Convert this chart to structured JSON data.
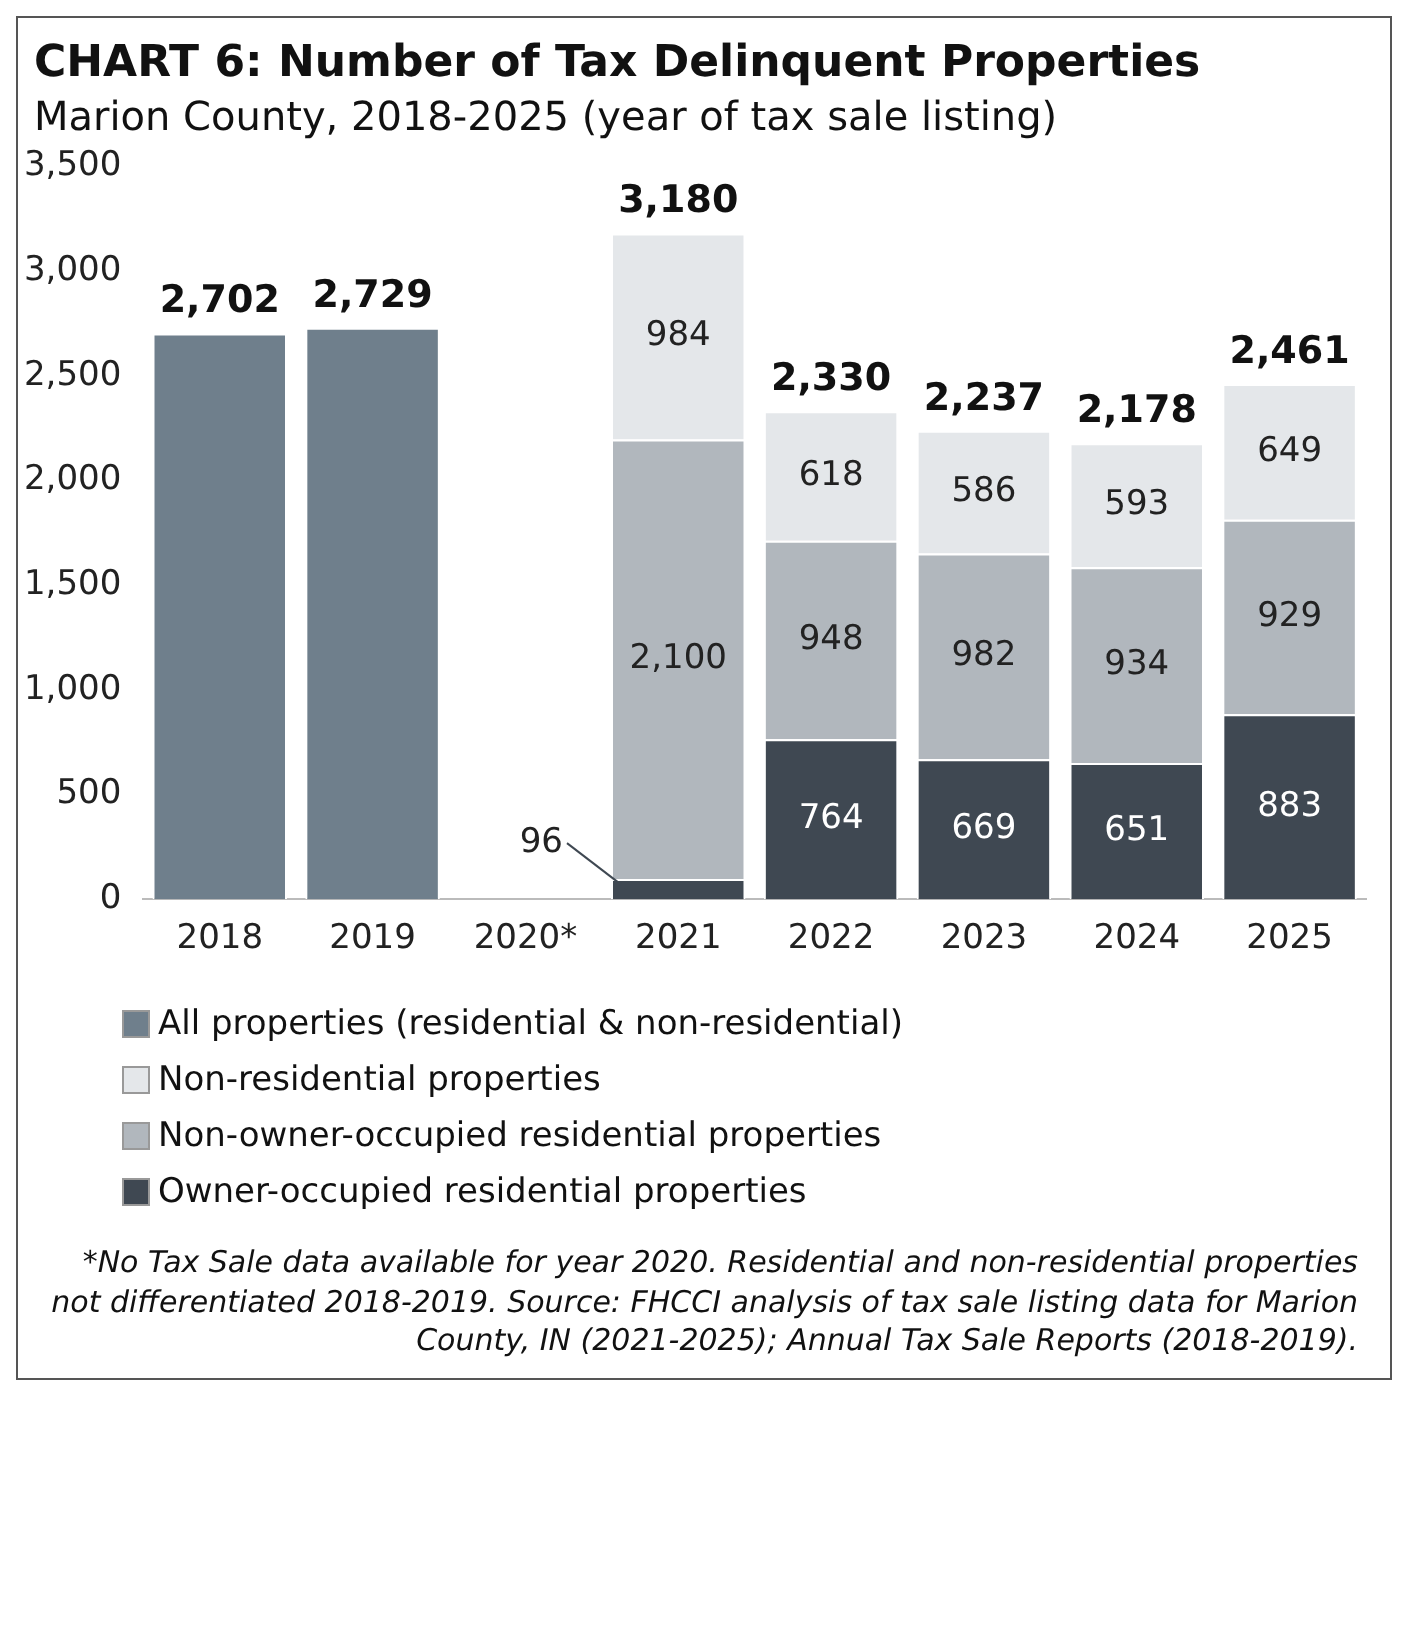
{
  "chart_data": {
    "type": "bar",
    "title": "CHART 6: Number of Tax Delinquent Properties",
    "subtitle": "Marion County, 2018-2025 (year of tax sale listing)",
    "categories": [
      "2018",
      "2019",
      "2020*",
      "2021",
      "2022",
      "2023",
      "2024",
      "2025"
    ],
    "series": [
      {
        "name": "All properties (residential & non-residential)",
        "color": "#6f7f8c",
        "values": [
          2702,
          2729,
          null,
          null,
          null,
          null,
          null,
          null
        ]
      },
      {
        "name": "Owner-occupied residential properties",
        "color": "#3f4852",
        "values": [
          null,
          null,
          null,
          96,
          764,
          669,
          651,
          883
        ],
        "value_labels": [
          null,
          null,
          null,
          "96",
          "764",
          "669",
          "651",
          "883"
        ]
      },
      {
        "name": "Non-owner-occupied residential properties",
        "color": "#b1b7bd",
        "values": [
          null,
          null,
          null,
          2100,
          948,
          982,
          934,
          929
        ],
        "value_labels": [
          null,
          null,
          null,
          "2,100",
          "948",
          "982",
          "934",
          "929"
        ]
      },
      {
        "name": "Non-residential properties",
        "color": "#e4e7ea",
        "values": [
          null,
          null,
          null,
          984,
          618,
          586,
          593,
          649
        ],
        "value_labels": [
          null,
          null,
          null,
          "984",
          "618",
          "586",
          "593",
          "649"
        ]
      }
    ],
    "totals": [
      "2,702",
      "2,729",
      null,
      "3,180",
      "2,330",
      "2,237",
      "2,178",
      "2,461"
    ],
    "stacked": true,
    "ylim": [
      0,
      3500
    ],
    "yticks": [
      0,
      {
        "value": 500,
        "label": "500"
      },
      {
        "value": 1000,
        "label": "1,000"
      },
      {
        "value": 1500,
        "label": "1,500"
      },
      {
        "value": 2000,
        "label": "2,000"
      },
      {
        "value": 2500,
        "label": "2,500"
      },
      {
        "value": 3000,
        "label": "3,000"
      },
      {
        "value": 3500,
        "label": "3,500"
      }
    ],
    "grid": false,
    "legend": "bottom",
    "annotations": [
      "*No Tax Sale data available for year 2020. Residential and non-residential properties not differentiated 2018-2019. Source: FHCCI analysis of tax sale listing data for Marion County, IN (2021-2025); Annual Tax Sale Reports (2018-2019)."
    ]
  }
}
